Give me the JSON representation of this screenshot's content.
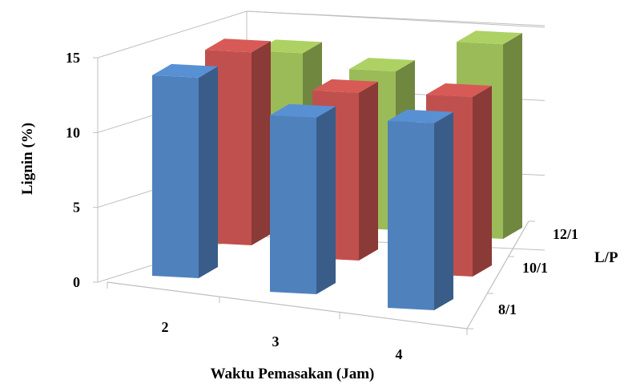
{
  "chart_data": {
    "type": "bar",
    "subtype": "3d-clustered-column",
    "title": "",
    "xlabel": "Waktu Pemasakan (Jam)",
    "ylabel": "Lignin (%)",
    "zlabel": "L/P",
    "categories": [
      "2",
      "3",
      "4"
    ],
    "ylim": [
      0,
      15
    ],
    "yticks": [
      "0",
      "5",
      "10",
      "15"
    ],
    "grid": true,
    "legend": "none",
    "series": [
      {
        "name": "8/1",
        "values": [
          13.4,
          11.8,
          12.5
        ],
        "color": "#4F81BD"
      },
      {
        "name": "10/1",
        "values": [
          12.9,
          11.2,
          12.0
        ],
        "color": "#C0504D"
      },
      {
        "name": "12/1",
        "values": [
          10.8,
          10.6,
          13.0
        ],
        "color": "#9BBB59"
      }
    ]
  }
}
